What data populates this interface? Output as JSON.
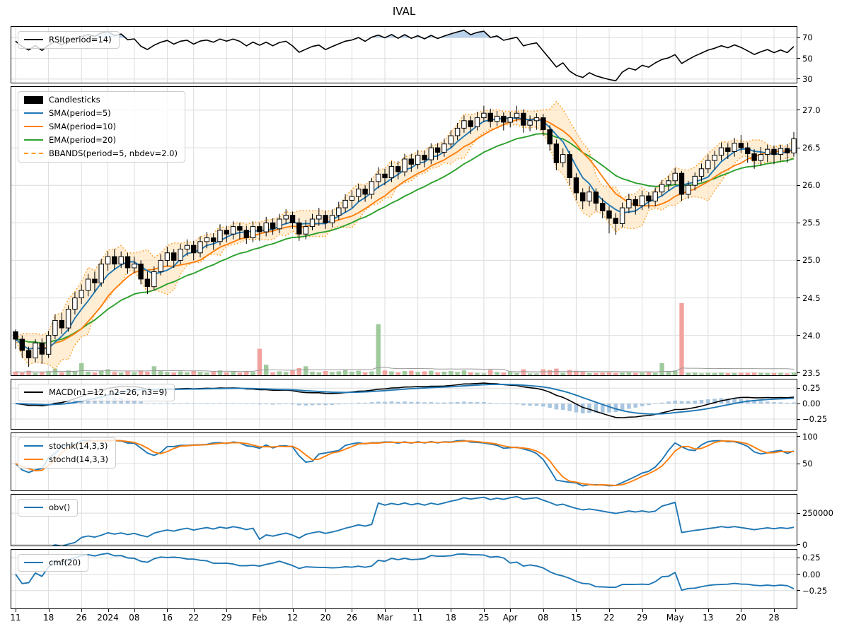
{
  "title": "IVAL",
  "colors": {
    "rsi": "#000000",
    "rsi_overbought_fill": "#b9d2ea",
    "sma5": "#1f77b4",
    "sma10": "#ff7f0e",
    "ema20": "#2ca02c",
    "bband": "#ff9d23",
    "bband_fill": "#ffdfb0",
    "candle_up": "#ffffff",
    "candle_down": "#000000",
    "candle_edge": "#000000",
    "vol_up": "#9fca9c",
    "vol_down": "#f3a29e",
    "vol_ma": "#9a9a9a",
    "macd": "#000000",
    "macd_signal": "#1f77b4",
    "macd_hist": "#a9c6e0",
    "stochk": "#1f77b4",
    "stochd": "#ff7f0e",
    "obv": "#1f77b4",
    "cmf": "#1f77b4",
    "grid": "#dcdcdc"
  },
  "panels": {
    "rsi": {
      "legend": [
        {
          "label": "RSI(period=14)",
          "swatch": "line",
          "color": "#000000"
        }
      ],
      "yticks": [
        "70",
        "50",
        "30"
      ],
      "ytick_values": [
        70,
        50,
        30
      ],
      "ylim": [
        26.5,
        80.5
      ]
    },
    "price": {
      "legend": [
        {
          "label": "Candlesticks",
          "swatch": "patch",
          "color": "#000000"
        },
        {
          "label": "SMA(period=5)",
          "swatch": "line",
          "color": "#1f77b4"
        },
        {
          "label": "SMA(period=10)",
          "swatch": "line",
          "color": "#ff7f0e"
        },
        {
          "label": "EMA(period=20)",
          "swatch": "line",
          "color": "#2ca02c"
        },
        {
          "label": "BBANDS(period=5, nbdev=2.0)",
          "swatch": "dashed",
          "color": "#ff9d23"
        }
      ],
      "yticks": [
        "27.0",
        "26.5",
        "26.0",
        "25.5",
        "25.0",
        "24.5",
        "24.0",
        "23.5"
      ],
      "ytick_values": [
        27.0,
        26.5,
        26.0,
        25.5,
        25.0,
        24.5,
        24.0,
        23.5
      ],
      "ylim": [
        23.47,
        27.31
      ]
    },
    "macd": {
      "legend": [
        {
          "label": "MACD(n1=12, n2=26, n3=9)",
          "swatch": "line",
          "color": "#000000"
        }
      ],
      "yticks": [
        "0.25",
        "0.00",
        "−0.25"
      ],
      "ytick_values": [
        0.25,
        0,
        -0.25
      ],
      "ylim": [
        -0.41,
        0.39
      ]
    },
    "stoch": {
      "legend": [
        {
          "label": "stochk(14,3,3)",
          "swatch": "line",
          "color": "#1f77b4"
        },
        {
          "label": "stochd(14,3,3)",
          "swatch": "line",
          "color": "#ff7f0e"
        }
      ],
      "yticks": [
        "100",
        "50"
      ],
      "ytick_values": [
        100,
        50
      ],
      "ylim": [
        0,
        106.5
      ]
    },
    "obv": {
      "legend": [
        {
          "label": "obv()",
          "swatch": "line",
          "color": "#1f77b4"
        }
      ],
      "yticks": [
        "250000",
        "0"
      ],
      "ytick_values": [
        250000,
        0
      ],
      "ylim": [
        -8000,
        397000
      ]
    },
    "cmf": {
      "legend": [
        {
          "label": "cmf(20)",
          "swatch": "line",
          "color": "#1f77b4"
        }
      ],
      "yticks": [
        "0.25",
        "0.00",
        "−0.25"
      ],
      "ytick_values": [
        0.25,
        0,
        -0.25
      ],
      "ylim": [
        -0.52,
        0.37
      ]
    }
  },
  "xticks": [
    {
      "label": "11",
      "i": 0
    },
    {
      "label": "18",
      "i": 5
    },
    {
      "label": "26",
      "i": 10
    },
    {
      "label": "2024",
      "i": 14
    },
    {
      "label": "08",
      "i": 18
    },
    {
      "label": "16",
      "i": 23
    },
    {
      "label": "22",
      "i": 27
    },
    {
      "label": "29",
      "i": 32
    },
    {
      "label": "Feb",
      "i": 37
    },
    {
      "label": "12",
      "i": 42
    },
    {
      "label": "20",
      "i": 47
    },
    {
      "label": "26",
      "i": 51
    },
    {
      "label": "Mar",
      "i": 56
    },
    {
      "label": "11",
      "i": 61
    },
    {
      "label": "18",
      "i": 66
    },
    {
      "label": "25",
      "i": 71
    },
    {
      "label": "Apr",
      "i": 75
    },
    {
      "label": "08",
      "i": 80
    },
    {
      "label": "15",
      "i": 85
    },
    {
      "label": "22",
      "i": 90
    },
    {
      "label": "29",
      "i": 95
    },
    {
      "label": "May",
      "i": 100
    },
    {
      "label": "13",
      "i": 105
    },
    {
      "label": "20",
      "i": 110
    },
    {
      "label": "28",
      "i": 115
    }
  ],
  "chart_data": {
    "type": "candlestick",
    "symbol": "IVAL",
    "n_points": 119,
    "indicators": [
      "RSI(period=14)",
      "SMA(period=5)",
      "SMA(period=10)",
      "EMA(period=20)",
      "BBANDS(period=5, nbdev=2.0)",
      "MACD(n1=12, n2=26, n3=9)",
      "stochk(14,3,3)",
      "stochd(14,3,3)",
      "obv()",
      "cmf(20)",
      "volume"
    ],
    "ohlc": [
      [
        24.05,
        24.08,
        23.82,
        23.95
      ],
      [
        23.95,
        24.0,
        23.7,
        23.8
      ],
      [
        23.8,
        23.85,
        23.58,
        23.7
      ],
      [
        23.7,
        23.95,
        23.64,
        23.9
      ],
      [
        23.9,
        23.96,
        23.62,
        23.75
      ],
      [
        23.75,
        24.06,
        23.7,
        24.0
      ],
      [
        24.0,
        24.28,
        23.95,
        24.2
      ],
      [
        24.2,
        24.3,
        24.02,
        24.1
      ],
      [
        24.1,
        24.4,
        24.05,
        24.35
      ],
      [
        24.35,
        24.58,
        24.28,
        24.5
      ],
      [
        24.5,
        24.68,
        24.42,
        24.6
      ],
      [
        24.6,
        24.82,
        24.52,
        24.75
      ],
      [
        24.75,
        24.85,
        24.58,
        24.7
      ],
      [
        24.7,
        25.02,
        24.65,
        24.95
      ],
      [
        24.95,
        25.12,
        24.86,
        25.05
      ],
      [
        25.05,
        25.15,
        24.88,
        24.95
      ],
      [
        24.95,
        25.12,
        24.9,
        25.05
      ],
      [
        25.05,
        25.1,
        24.82,
        24.9
      ],
      [
        24.9,
        25.05,
        24.83,
        24.95
      ],
      [
        24.95,
        25.0,
        24.68,
        24.75
      ],
      [
        24.75,
        24.85,
        24.55,
        24.65
      ],
      [
        24.65,
        24.92,
        24.6,
        24.85
      ],
      [
        24.85,
        25.08,
        24.8,
        25.0
      ],
      [
        25.0,
        25.18,
        24.92,
        25.1
      ],
      [
        25.1,
        25.15,
        24.9,
        25.0
      ],
      [
        25.0,
        25.22,
        24.95,
        25.15
      ],
      [
        25.15,
        25.28,
        25.06,
        25.2
      ],
      [
        25.2,
        25.26,
        25.0,
        25.1
      ],
      [
        25.1,
        25.32,
        25.04,
        25.25
      ],
      [
        25.25,
        25.38,
        25.16,
        25.3
      ],
      [
        25.3,
        25.36,
        25.14,
        25.25
      ],
      [
        25.25,
        25.48,
        25.2,
        25.4
      ],
      [
        25.4,
        25.46,
        25.24,
        25.35
      ],
      [
        25.35,
        25.52,
        25.28,
        25.45
      ],
      [
        25.45,
        25.5,
        25.28,
        25.4
      ],
      [
        25.4,
        25.46,
        25.22,
        25.3
      ],
      [
        25.3,
        25.52,
        25.24,
        25.45
      ],
      [
        25.45,
        25.5,
        25.26,
        25.38
      ],
      [
        25.38,
        25.58,
        25.32,
        25.5
      ],
      [
        25.5,
        25.56,
        25.34,
        25.42
      ],
      [
        25.42,
        25.62,
        25.36,
        25.55
      ],
      [
        25.55,
        25.68,
        25.48,
        25.6
      ],
      [
        25.6,
        25.65,
        25.42,
        25.5
      ],
      [
        25.5,
        25.56,
        25.26,
        25.35
      ],
      [
        25.35,
        25.54,
        25.28,
        25.45
      ],
      [
        25.45,
        25.62,
        25.4,
        25.55
      ],
      [
        25.55,
        25.7,
        25.46,
        25.6
      ],
      [
        25.6,
        25.66,
        25.42,
        25.5
      ],
      [
        25.5,
        25.68,
        25.44,
        25.6
      ],
      [
        25.6,
        25.78,
        25.54,
        25.7
      ],
      [
        25.7,
        25.88,
        25.64,
        25.8
      ],
      [
        25.8,
        25.93,
        25.7,
        25.85
      ],
      [
        25.85,
        26.02,
        25.78,
        25.95
      ],
      [
        25.95,
        26.0,
        25.78,
        25.88
      ],
      [
        25.88,
        26.1,
        25.82,
        26.05
      ],
      [
        26.05,
        26.24,
        25.96,
        26.15
      ],
      [
        26.15,
        26.22,
        26.0,
        26.1
      ],
      [
        26.1,
        26.32,
        26.04,
        26.25
      ],
      [
        26.25,
        26.32,
        26.08,
        26.18
      ],
      [
        26.18,
        26.42,
        26.12,
        26.35
      ],
      [
        26.35,
        26.42,
        26.18,
        26.28
      ],
      [
        26.28,
        26.47,
        26.22,
        26.4
      ],
      [
        26.4,
        26.46,
        26.24,
        26.34
      ],
      [
        26.34,
        26.56,
        26.28,
        26.5
      ],
      [
        26.5,
        26.56,
        26.34,
        26.44
      ],
      [
        26.44,
        26.62,
        26.38,
        26.55
      ],
      [
        26.55,
        26.73,
        26.5,
        26.66
      ],
      [
        26.66,
        26.83,
        26.6,
        26.76
      ],
      [
        26.76,
        26.93,
        26.7,
        26.86
      ],
      [
        26.86,
        26.92,
        26.68,
        26.78
      ],
      [
        26.78,
        26.98,
        26.73,
        26.9
      ],
      [
        26.9,
        27.06,
        26.84,
        26.96
      ],
      [
        26.96,
        27.02,
        26.77,
        26.85
      ],
      [
        26.85,
        26.99,
        26.79,
        26.92
      ],
      [
        26.92,
        26.97,
        26.73,
        26.84
      ],
      [
        26.84,
        26.98,
        26.77,
        26.9
      ],
      [
        26.9,
        27.06,
        26.85,
        26.96
      ],
      [
        26.96,
        27.01,
        26.7,
        26.8
      ],
      [
        26.8,
        26.93,
        26.72,
        26.86
      ],
      [
        26.86,
        26.96,
        26.74,
        26.9
      ],
      [
        26.9,
        26.95,
        26.66,
        26.74
      ],
      [
        26.74,
        26.8,
        26.46,
        26.55
      ],
      [
        26.55,
        26.61,
        26.2,
        26.3
      ],
      [
        26.3,
        26.49,
        26.24,
        26.41
      ],
      [
        26.41,
        26.46,
        26.0,
        26.1
      ],
      [
        26.1,
        26.16,
        25.8,
        25.9
      ],
      [
        25.9,
        25.96,
        25.68,
        25.79
      ],
      [
        25.79,
        25.99,
        25.72,
        25.91
      ],
      [
        25.91,
        25.96,
        25.66,
        25.76
      ],
      [
        25.76,
        25.83,
        25.56,
        25.66
      ],
      [
        25.66,
        25.72,
        25.36,
        25.56
      ],
      [
        25.56,
        25.63,
        25.34,
        25.49
      ],
      [
        25.49,
        25.77,
        25.44,
        25.7
      ],
      [
        25.7,
        25.89,
        25.63,
        25.81
      ],
      [
        25.81,
        25.86,
        25.61,
        25.73
      ],
      [
        25.73,
        25.93,
        25.67,
        25.86
      ],
      [
        25.86,
        25.91,
        25.69,
        25.79
      ],
      [
        25.79,
        25.97,
        25.72,
        25.91
      ],
      [
        25.91,
        26.07,
        25.86,
        26.01
      ],
      [
        26.01,
        26.13,
        25.93,
        26.06
      ],
      [
        26.06,
        26.23,
        26.0,
        26.16
      ],
      [
        26.16,
        26.19,
        25.79,
        25.88
      ],
      [
        25.88,
        26.06,
        25.82,
        26.0
      ],
      [
        26.0,
        26.17,
        25.93,
        26.12
      ],
      [
        26.12,
        26.29,
        26.05,
        26.22
      ],
      [
        26.22,
        26.41,
        26.16,
        26.33
      ],
      [
        26.33,
        26.46,
        26.21,
        26.4
      ],
      [
        26.4,
        26.57,
        26.33,
        26.5
      ],
      [
        26.5,
        26.56,
        26.35,
        26.45
      ],
      [
        26.45,
        26.63,
        26.38,
        26.56
      ],
      [
        26.56,
        26.67,
        26.43,
        26.5
      ],
      [
        26.5,
        26.57,
        26.3,
        26.42
      ],
      [
        26.42,
        26.48,
        26.22,
        26.33
      ],
      [
        26.33,
        26.51,
        26.26,
        26.41
      ],
      [
        26.41,
        26.54,
        26.31,
        26.48
      ],
      [
        26.48,
        26.53,
        26.28,
        26.41
      ],
      [
        26.41,
        26.54,
        26.33,
        26.49
      ],
      [
        26.49,
        26.55,
        26.3,
        26.43
      ],
      [
        26.43,
        26.71,
        26.38,
        26.62
      ]
    ],
    "volume": [
      12000,
      9000,
      15000,
      8000,
      11000,
      14000,
      22000,
      10000,
      16000,
      13000,
      40000,
      12000,
      9000,
      15000,
      20000,
      11000,
      9000,
      13000,
      10000,
      16000,
      12000,
      30000,
      14000,
      11000,
      9000,
      13000,
      10000,
      15000,
      11000,
      9000,
      12000,
      16000,
      10000,
      13000,
      9000,
      14000,
      11000,
      88000,
      35000,
      10000,
      13000,
      11000,
      16000,
      24000,
      30000,
      12000,
      10000,
      14000,
      11000,
      13000,
      17000,
      12000,
      15000,
      10000,
      13000,
      170000,
      16000,
      13000,
      10000,
      14000,
      15000,
      11000,
      13000,
      15000,
      10000,
      12000,
      14000,
      11000,
      16000,
      10000,
      8000,
      6000,
      18000,
      11000,
      9000,
      13000,
      8000,
      20000,
      6000,
      6000,
      20000,
      18000,
      22000,
      8000,
      18000,
      15000,
      12000,
      7000,
      8000,
      9000,
      10000,
      8000,
      9000,
      10000,
      8000,
      9000,
      10000,
      8000,
      40000,
      14000,
      16000,
      240000,
      8000,
      9000,
      6000,
      8000,
      7000,
      9000,
      7000,
      7000,
      8000,
      8000,
      9000,
      8000,
      7000,
      7000,
      8000,
      6000,
      9000
    ]
  }
}
